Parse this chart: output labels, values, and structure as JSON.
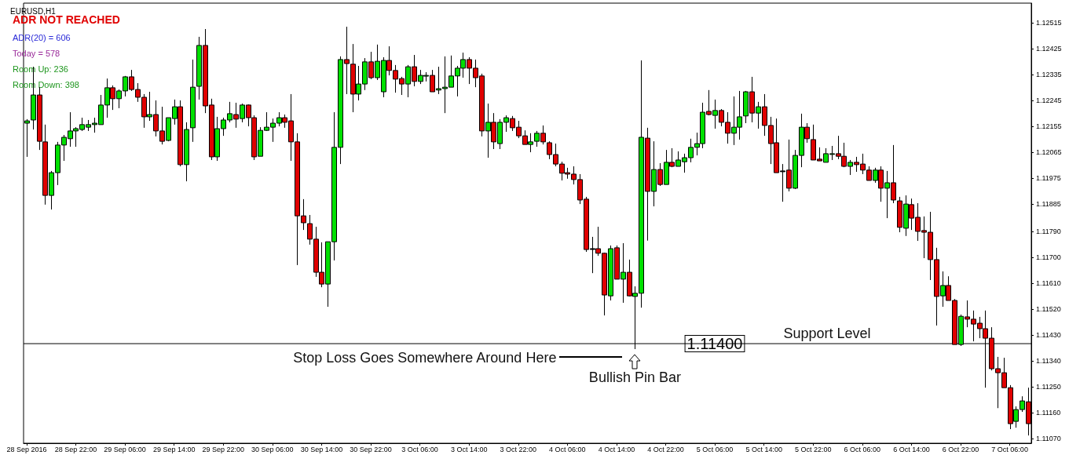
{
  "chart_data": {
    "type": "candlestick",
    "title": "EURUSD,H1",
    "annotations": [
      "ADR NOT REACHED",
      "ADR(20) = 606",
      "Today = 578",
      "Room Up: 236",
      "Room Down: 398",
      "Stop Loss Goes Somewhere Around Here",
      "Bullish Pin Bar",
      "Support Level"
    ],
    "categories": [
      "28 Sep 2016",
      null,
      null,
      null,
      null,
      null,
      null,
      null,
      "28 Sep 22:00",
      null,
      null,
      null,
      null,
      null,
      null,
      null,
      "29 Sep 06:00",
      null,
      null,
      null,
      null,
      null,
      null,
      null,
      "29 Sep 14:00",
      null,
      null,
      null,
      null,
      null,
      null,
      null,
      "29 Sep 22:00",
      null,
      null,
      null,
      null,
      null,
      null,
      null,
      "30 Sep 06:00",
      null,
      null,
      null,
      null,
      null,
      null,
      null,
      "30 Sep 14:00",
      null,
      null,
      null,
      null,
      null,
      null,
      null,
      "30 Sep 22:00",
      null,
      null,
      null,
      null,
      null,
      null,
      null,
      "3 Oct 06:00",
      null,
      null,
      null,
      null,
      null,
      null,
      null,
      "3 Oct 14:00",
      null,
      null,
      null,
      null,
      null,
      null,
      null,
      "3 Oct 22:00",
      null,
      null,
      null,
      null,
      null,
      null,
      null,
      "4 Oct 06:00",
      null,
      null,
      null,
      null,
      null,
      null,
      null,
      "4 Oct 14:00",
      null,
      null,
      null,
      null,
      null,
      null,
      null,
      "4 Oct 22:00",
      null,
      null,
      null,
      null,
      null,
      null,
      null,
      "5 Oct 06:00",
      null,
      null,
      null,
      null,
      null,
      null,
      null,
      "5 Oct 14:00",
      null,
      null,
      null,
      null,
      null,
      null,
      null,
      "5 Oct 22:00",
      null,
      null,
      null,
      null,
      null,
      null,
      null,
      "6 Oct 06:00",
      null,
      null,
      null,
      null,
      null,
      null,
      null,
      "6 Oct 14:00",
      null,
      null,
      null,
      null,
      null,
      null,
      null,
      "6 Oct 22:00",
      null,
      null,
      null,
      null,
      null,
      null,
      null,
      "7 Oct 06:00",
      null,
      null,
      null
    ],
    "ohlc": [
      [
        1.12166,
        1.1218,
        1.12049,
        1.12174
      ],
      [
        1.12177,
        1.12362,
        1.12144,
        1.12264
      ],
      [
        1.12264,
        1.12291,
        1.12073,
        1.12103
      ],
      [
        1.12101,
        1.12161,
        1.11883,
        1.11915
      ],
      [
        1.11915,
        1.12,
        1.11866,
        1.11994
      ],
      [
        1.11994,
        1.12101,
        1.11951,
        1.1209
      ],
      [
        1.1209,
        1.12125,
        1.12035,
        1.12117
      ],
      [
        1.12112,
        1.12204,
        1.12084,
        1.12139
      ],
      [
        1.12139,
        1.12152,
        1.12084,
        1.12147
      ],
      [
        1.12144,
        1.12185,
        1.12139,
        1.12161
      ],
      [
        1.12152,
        1.12177,
        1.12139,
        1.12161
      ],
      [
        1.12161,
        1.12185,
        1.12133,
        1.12166
      ],
      [
        1.12161,
        1.12264,
        1.12161,
        1.12229
      ],
      [
        1.12229,
        1.12321,
        1.12185,
        1.12289
      ],
      [
        1.12289,
        1.12297,
        1.12212,
        1.12251
      ],
      [
        1.12251,
        1.12283,
        1.12218,
        1.12278
      ],
      [
        1.12278,
        1.1233,
        1.12259,
        1.12327
      ],
      [
        1.12327,
        1.12351,
        1.12278,
        1.12283
      ],
      [
        1.12283,
        1.12305,
        1.1224,
        1.12256
      ],
      [
        1.12256,
        1.12267,
        1.1215,
        1.12188
      ],
      [
        1.12188,
        1.12275,
        1.12174,
        1.12196
      ],
      [
        1.12196,
        1.12245,
        1.1212,
        1.12139
      ],
      [
        1.12139,
        1.12223,
        1.12092,
        1.12103
      ],
      [
        1.12106,
        1.12185,
        1.12103,
        1.12185
      ],
      [
        1.12182,
        1.12248,
        1.12161,
        1.12223
      ],
      [
        1.12223,
        1.12245,
        1.12016,
        1.12022
      ],
      [
        1.12022,
        1.12169,
        1.11964,
        1.12144
      ],
      [
        1.1215,
        1.12387,
        1.12101,
        1.12291
      ],
      [
        1.12294,
        1.12466,
        1.12248,
        1.12436
      ],
      [
        1.12436,
        1.12493,
        1.12201,
        1.12226
      ],
      [
        1.12229,
        1.12251,
        1.12038,
        1.12049
      ],
      [
        1.12049,
        1.12188,
        1.12035,
        1.12147
      ],
      [
        1.12147,
        1.12185,
        1.12122,
        1.12177
      ],
      [
        1.12177,
        1.1224,
        1.12169,
        1.12199
      ],
      [
        1.12196,
        1.12237,
        1.1215,
        1.1218
      ],
      [
        1.12182,
        1.12234,
        1.12169,
        1.12229
      ],
      [
        1.12229,
        1.12231,
        1.12155,
        1.12185
      ],
      [
        1.12185,
        1.12193,
        1.12038,
        1.12049
      ],
      [
        1.12051,
        1.12152,
        1.12051,
        1.12141
      ],
      [
        1.12141,
        1.12204,
        1.12139,
        1.12152
      ],
      [
        1.12152,
        1.12182,
        1.12101,
        1.12166
      ],
      [
        1.12166,
        1.12204,
        1.12155,
        1.12185
      ],
      [
        1.12185,
        1.12196,
        1.1215,
        1.12169
      ],
      [
        1.12174,
        1.12267,
        1.12035,
        1.12101
      ],
      [
        1.12101,
        1.12131,
        1.11673,
        1.11844
      ],
      [
        1.11844,
        1.11902,
        1.11795,
        1.1182
      ],
      [
        1.11817,
        1.11847,
        1.11744,
        1.11763
      ],
      [
        1.11763,
        1.11806,
        1.11632,
        1.11648
      ],
      [
        1.11648,
        1.11752,
        1.11596,
        1.11607
      ],
      [
        1.11607,
        1.11754,
        1.11528,
        1.11754
      ],
      [
        1.11754,
        1.12204,
        1.11689,
        1.12082
      ],
      [
        1.12082,
        1.12398,
        1.12024,
        1.12387
      ],
      [
        1.12387,
        1.12501,
        1.12267,
        1.12373
      ],
      [
        1.12371,
        1.12441,
        1.12204,
        1.12267
      ],
      [
        1.12267,
        1.12365,
        1.12245,
        1.12302
      ],
      [
        1.12302,
        1.12392,
        1.12281,
        1.12379
      ],
      [
        1.12379,
        1.12414,
        1.12319,
        1.12324
      ],
      [
        1.12324,
        1.12439,
        1.12316,
        1.12381
      ],
      [
        1.12275,
        1.12395,
        1.12256,
        1.12384
      ],
      [
        1.12384,
        1.12433,
        1.12332,
        1.12349
      ],
      [
        1.12349,
        1.12368,
        1.12272,
        1.12319
      ],
      [
        1.12321,
        1.12327,
        1.12264,
        1.12302
      ],
      [
        1.12302,
        1.12368,
        1.12256,
        1.12362
      ],
      [
        1.12362,
        1.12403,
        1.12294,
        1.12311
      ],
      [
        1.12311,
        1.12351,
        1.12302,
        1.12332
      ],
      [
        1.12332,
        1.12343,
        1.12311,
        1.12332
      ],
      [
        1.12332,
        1.12351,
        1.12275,
        1.12275
      ],
      [
        1.12281,
        1.12362,
        1.12267,
        1.12286
      ],
      [
        1.12286,
        1.12398,
        1.12201,
        1.12291
      ],
      [
        1.12291,
        1.12401,
        1.12291,
        1.1233
      ],
      [
        1.1233,
        1.12365,
        1.12259,
        1.12357
      ],
      [
        1.12357,
        1.12411,
        1.12324,
        1.12387
      ],
      [
        1.12387,
        1.12395,
        1.12302,
        1.12357
      ],
      [
        1.12357,
        1.12387,
        1.12291,
        1.12324
      ],
      [
        1.1233,
        1.12338,
        1.1212,
        1.12139
      ],
      [
        1.12139,
        1.12234,
        1.12046,
        1.12169
      ],
      [
        1.12169,
        1.12201,
        1.12076,
        1.12101
      ],
      [
        1.12095,
        1.1218,
        1.12076,
        1.12169
      ],
      [
        1.12169,
        1.12193,
        1.12136,
        1.12185
      ],
      [
        1.12182,
        1.12191,
        1.12139,
        1.1215
      ],
      [
        1.12152,
        1.12174,
        1.12114,
        1.12122
      ],
      [
        1.12122,
        1.12141,
        1.12092,
        1.12092
      ],
      [
        1.12092,
        1.12131,
        1.12065,
        1.12101
      ],
      [
        1.12103,
        1.12139,
        1.12084,
        1.12131
      ],
      [
        1.12131,
        1.12158,
        1.12092,
        1.12101
      ],
      [
        1.12098,
        1.12103,
        1.12041,
        1.12057
      ],
      [
        1.12057,
        1.12095,
        1.12016,
        1.12024
      ],
      [
        1.12024,
        1.12032,
        1.11967,
        1.11992
      ],
      [
        1.11994,
        1.12011,
        1.11973,
        1.11989
      ],
      [
        1.11989,
        1.12016,
        1.11953,
        1.1197
      ],
      [
        1.1197,
        1.11989,
        1.11885,
        1.11899
      ],
      [
        1.11902,
        1.1191,
        1.11719,
        1.11727
      ],
      [
        1.1173,
        1.11771,
        1.11645,
        1.1173
      ],
      [
        1.1173,
        1.11806,
        1.11705,
        1.11714
      ],
      [
        1.11714,
        1.11716,
        1.11498,
        1.11569
      ],
      [
        1.11566,
        1.11741,
        1.1155,
        1.1173
      ],
      [
        1.11733,
        1.11741,
        1.11624,
        1.11624
      ],
      [
        1.11624,
        1.11749,
        1.11542,
        1.11648
      ],
      [
        1.11648,
        1.11692,
        1.11564,
        1.11566
      ],
      [
        1.11564,
        1.11599,
        1.11381,
        1.11575
      ],
      [
        1.11575,
        1.12384,
        1.11525,
        1.12117
      ],
      [
        1.12114,
        1.1215,
        1.11758,
        1.11929
      ],
      [
        1.11929,
        1.12103,
        1.11877,
        1.12005
      ],
      [
        1.12005,
        1.12027,
        1.11948,
        1.11953
      ],
      [
        1.11953,
        1.12073,
        1.11953,
        1.1203
      ],
      [
        1.1203,
        1.12079,
        1.12013,
        1.12016
      ],
      [
        1.12016,
        1.12068,
        1.12016,
        1.12038
      ],
      [
        1.12032,
        1.1206,
        1.11994,
        1.12046
      ],
      [
        1.12046,
        1.12112,
        1.1203,
        1.12082
      ],
      [
        1.12082,
        1.12133,
        1.12054,
        1.12095
      ],
      [
        1.12095,
        1.12237,
        1.12079,
        1.12204
      ],
      [
        1.12207,
        1.12281,
        1.12193,
        1.12196
      ],
      [
        1.12193,
        1.12248,
        1.12147,
        1.1221
      ],
      [
        1.1221,
        1.12215,
        1.12155,
        1.12169
      ],
      [
        1.12169,
        1.12204,
        1.12095,
        1.12131
      ],
      [
        1.12131,
        1.12259,
        1.1209,
        1.12152
      ],
      [
        1.12152,
        1.12278,
        1.12109,
        1.12188
      ],
      [
        1.12191,
        1.12278,
        1.12166,
        1.12275
      ],
      [
        1.12275,
        1.12327,
        1.12169,
        1.12201
      ],
      [
        1.12201,
        1.1224,
        1.12147,
        1.12223
      ],
      [
        1.12223,
        1.12267,
        1.12122,
        1.12158
      ],
      [
        1.12158,
        1.12188,
        1.12024,
        1.12095
      ],
      [
        1.12098,
        1.12182,
        1.11994,
        1.11994
      ],
      [
        1.12,
        1.12024,
        1.11893,
        1.12
      ],
      [
        1.12003,
        1.12109,
        1.11929,
        1.1194
      ],
      [
        1.1194,
        1.12073,
        1.11937,
        1.12054
      ],
      [
        1.12054,
        1.12199,
        1.12013,
        1.12152
      ],
      [
        1.12152,
        1.12166,
        1.12098,
        1.12112
      ],
      [
        1.12109,
        1.12161,
        1.12038,
        1.12038
      ],
      [
        1.12041,
        1.12082,
        1.12035,
        1.12035
      ],
      [
        1.1203,
        1.12079,
        1.1203,
        1.1206
      ],
      [
        1.1206,
        1.12087,
        1.12038,
        1.1206
      ],
      [
        1.1206,
        1.12122,
        1.12041,
        1.12051
      ],
      [
        1.12051,
        1.12098,
        1.12013,
        1.12016
      ],
      [
        1.12016,
        1.12038,
        1.11986,
        1.1203
      ],
      [
        1.1203,
        1.12049,
        1.11997,
        1.12022
      ],
      [
        1.12024,
        1.1206,
        1.11989,
        1.12003
      ],
      [
        1.12003,
        1.12016,
        1.11967,
        1.11967
      ],
      [
        1.11967,
        1.12011,
        1.11959,
        1.12003
      ],
      [
        1.12003,
        1.12016,
        1.11893,
        1.1194
      ],
      [
        1.1194,
        1.12,
        1.11836,
        1.11959
      ],
      [
        1.11959,
        1.1209,
        1.11888,
        1.11899
      ],
      [
        1.11896,
        1.1191,
        1.11787,
        1.11804
      ],
      [
        1.11801,
        1.11915,
        1.11774,
        1.11885
      ],
      [
        1.11883,
        1.11904,
        1.11795,
        1.11836
      ],
      [
        1.11839,
        1.11888,
        1.11757,
        1.1179
      ],
      [
        1.11793,
        1.11842,
        1.11697,
        1.11787
      ],
      [
        1.11787,
        1.11858,
        1.11621,
        1.11692
      ],
      [
        1.11692,
        1.11733,
        1.11463,
        1.11564
      ],
      [
        1.11566,
        1.11651,
        1.11528,
        1.11602
      ],
      [
        1.11602,
        1.11634,
        1.1155,
        1.1155
      ],
      [
        1.1155,
        1.11555,
        1.11397,
        1.11397
      ],
      [
        1.11397,
        1.11501,
        1.11392,
        1.11495
      ],
      [
        1.11493,
        1.1155,
        1.11457,
        1.11485
      ],
      [
        1.11485,
        1.11515,
        1.11408,
        1.11468
      ],
      [
        1.11471,
        1.11493,
        1.11419,
        1.11452
      ],
      [
        1.11452,
        1.11515,
        1.11247,
        1.11419
      ],
      [
        1.11419,
        1.11457,
        1.11307,
        1.11313
      ],
      [
        1.11313,
        1.11354,
        1.11176,
        1.11299
      ],
      [
        1.11299,
        1.11351,
        1.11247,
        1.11247
      ],
      [
        1.11247,
        1.11256,
        1.11103,
        1.11122
      ],
      [
        1.1113,
        1.11182,
        1.11108,
        1.11171
      ],
      [
        1.11171,
        1.11217,
        1.11163,
        1.11201
      ],
      [
        1.11198,
        1.11247,
        1.11081,
        1.11122
      ]
    ],
    "colors": [
      "#00e000",
      "#00e000",
      "#e00000",
      "#e00000",
      "#00e000",
      "#00e000",
      "#00e000",
      "#00e000",
      "#00e000",
      "#00e000",
      "#00e000",
      "#00e000",
      "#00e000",
      "#00e000",
      "#e00000",
      "#00e000",
      "#00e000",
      "#e00000",
      "#e00000",
      "#e00000",
      "#00e000",
      "#e00000",
      "#e00000",
      "#00e000",
      "#00e000",
      "#e00000",
      "#00e000",
      "#00e000",
      "#00e000",
      "#e00000",
      "#e00000",
      "#00e000",
      "#00e000",
      "#00e000",
      "#e00000",
      "#00e000",
      "#e00000",
      "#e00000",
      "#00e000",
      "#00e000",
      "#00e000",
      "#00e000",
      "#e00000",
      "#e00000",
      "#e00000",
      "#e00000",
      "#e00000",
      "#e00000",
      "#e00000",
      "#00e000",
      "#00e000",
      "#00e000",
      "#e00000",
      "#e00000",
      "#00e000",
      "#00e000",
      "#e00000",
      "#00e000",
      "#00e000",
      "#e00000",
      "#e00000",
      "#e00000",
      "#00e000",
      "#e00000",
      "#00e000",
      "#00e000",
      "#e00000",
      "#00e000",
      "#00e000",
      "#00e000",
      "#00e000",
      "#00e000",
      "#e00000",
      "#e00000",
      "#e00000",
      "#00e000",
      "#e00000",
      "#00e000",
      "#00e000",
      "#e00000",
      "#e00000",
      "#e00000",
      "#00e000",
      "#00e000",
      "#e00000",
      "#e00000",
      "#e00000",
      "#e00000",
      "#e00000",
      "#e00000",
      "#e00000",
      "#e00000",
      "#000000",
      "#e00000",
      "#e00000",
      "#00e000",
      "#e00000",
      "#00e000",
      "#e00000",
      "#00e000",
      "#00e000",
      "#e00000",
      "#00e000",
      "#e00000",
      "#00e000",
      "#e00000",
      "#00e000",
      "#00e000",
      "#00e000",
      "#00e000",
      "#00e000",
      "#e00000",
      "#00e000",
      "#e00000",
      "#e00000",
      "#00e000",
      "#00e000",
      "#00e000",
      "#e00000",
      "#00e000",
      "#e00000",
      "#e00000",
      "#e00000",
      "#000000",
      "#e00000",
      "#00e000",
      "#00e000",
      "#e00000",
      "#e00000",
      "#e00000",
      "#00e000",
      "#00e000",
      "#e00000",
      "#e00000",
      "#00e000",
      "#e00000",
      "#e00000",
      "#e00000",
      "#00e000",
      "#e00000",
      "#00e000",
      "#e00000",
      "#e00000",
      "#00e000",
      "#e00000",
      "#e00000",
      "#e00000",
      "#e00000",
      "#e00000",
      "#00e000",
      "#e00000",
      "#e00000",
      "#00e000",
      "#e00000",
      "#e00000",
      "#e00000",
      "#e00000",
      "#e00000",
      "#e00000",
      "#e00000",
      "#e00000",
      "#00e000",
      "#00e000",
      "#e00000"
    ],
    "ylim": [
      1.11054,
      1.12583
    ],
    "yticks": [
      1.12515,
      1.12425,
      1.12335,
      1.12245,
      1.12155,
      1.12065,
      1.11975,
      1.11885,
      {
        "value": 1.1179,
        "label": "1.11790"
      },
      {
        "value": 1.117,
        "label": "1.11700"
      },
      {
        "value": 1.1161,
        "label": "1.11610"
      },
      {
        "value": 1.1152,
        "label": "1.11520"
      },
      {
        "value": 1.1143,
        "label": "1.11430"
      },
      {
        "value": 1.1134,
        "label": "1.11340"
      },
      {
        "value": 1.1125,
        "label": "1.11250"
      },
      {
        "value": 1.1116,
        "label": "1.11160"
      },
      {
        "value": 1.1107,
        "label": "1.11070"
      }
    ],
    "ref_lines": [
      {
        "axis": "y",
        "value": 1.114,
        "label": "1.11400",
        "color": "#000000"
      }
    ]
  }
}
